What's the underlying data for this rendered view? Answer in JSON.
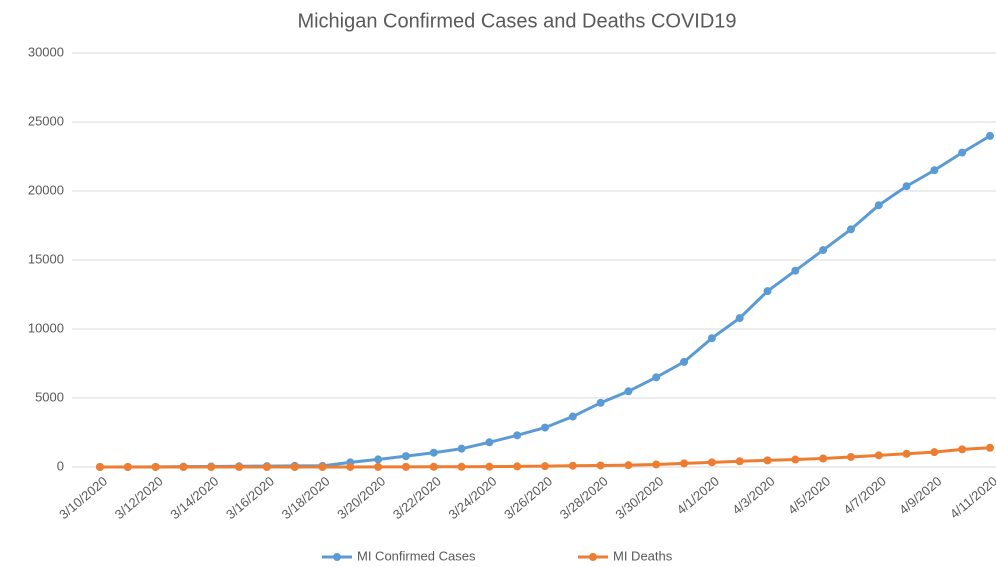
{
  "chart_data": {
    "type": "line",
    "title": "Michigan Confirmed Cases and Deaths COVID19",
    "categories": [
      "3/10/2020",
      null,
      "3/12/2020",
      null,
      "3/14/2020",
      null,
      "3/16/2020",
      null,
      "3/18/2020",
      null,
      "3/20/2020",
      null,
      "3/22/2020",
      null,
      "3/24/2020",
      null,
      "3/26/2020",
      null,
      "3/28/2020",
      null,
      "3/30/2020",
      null,
      "4/1/2020",
      null,
      "4/3/2020",
      null,
      "4/5/2020",
      null,
      "4/7/2020",
      null,
      "4/9/2020",
      null,
      "4/11/2020"
    ],
    "series": [
      {
        "name": "MI Confirmed Cases",
        "color": "#5b9bd5",
        "values": [
          2,
          2,
          12,
          25,
          33,
          53,
          65,
          83,
          80,
          334,
          549,
          787,
          1035,
          1328,
          1791,
          2294,
          2856,
          3657,
          4650,
          5486,
          6498,
          7615,
          9334,
          10791,
          12744,
          14225,
          15718,
          17221,
          18970,
          20346,
          21504,
          22783,
          23993
        ]
      },
      {
        "name": "MI Deaths",
        "color": "#ed7d31",
        "values": [
          0,
          0,
          0,
          0,
          0,
          0,
          0,
          0,
          1,
          3,
          5,
          8,
          15,
          15,
          24,
          43,
          60,
          92,
          111,
          132,
          184,
          259,
          337,
          417,
          479,
          540,
          617,
          727,
          845,
          959,
          1076,
          1281,
          1392
        ]
      }
    ],
    "ylim": [
      0,
      30000
    ],
    "yticks": [
      0,
      5000,
      10000,
      15000,
      20000,
      25000,
      30000
    ],
    "grid": true,
    "legend": "bottom"
  }
}
